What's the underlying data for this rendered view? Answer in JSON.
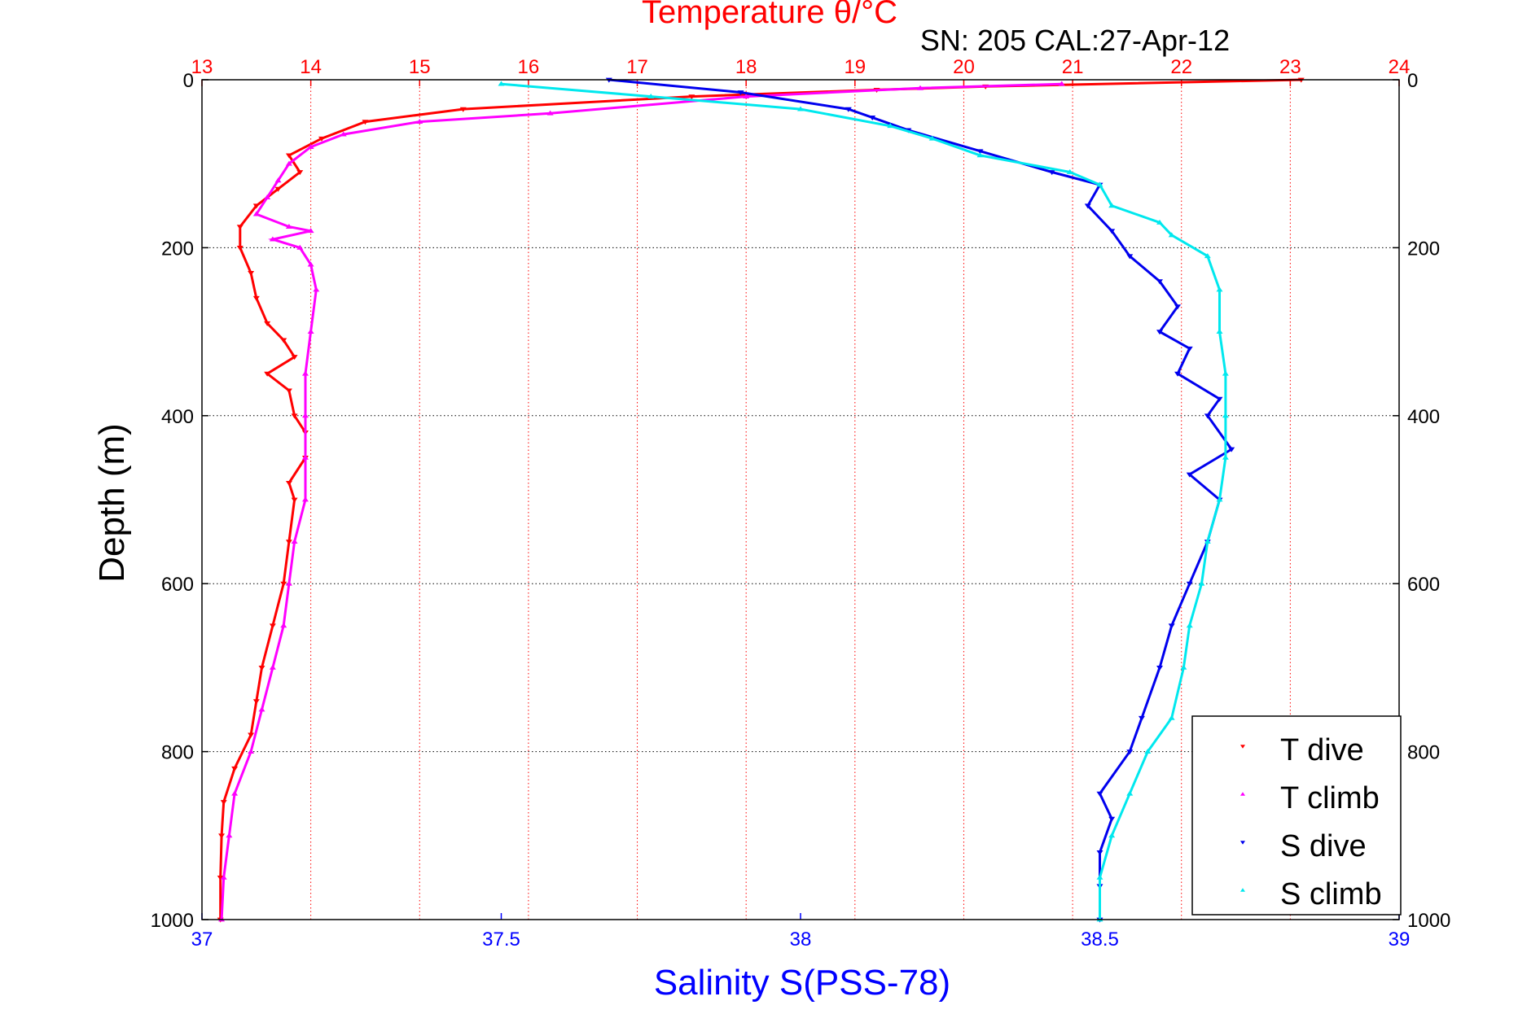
{
  "chart_data": {
    "type": "scatter",
    "title": "Temperature θ/°C",
    "subtitle": "SN: 205  CAL:27-Apr-12",
    "ylabel": "Depth (m)",
    "xlabel_bottom": "Salinity S(PSS-78)",
    "xlabel_top": "Temperature θ/°C",
    "ylim": [
      0,
      1000
    ],
    "y_reversed": true,
    "salinity_lim": [
      37,
      39
    ],
    "temperature_lim": [
      13,
      24
    ],
    "y_ticks": [
      "0",
      "200",
      "400",
      "600",
      "800",
      "1000"
    ],
    "salinity_ticks": [
      "37",
      "37.5",
      "38",
      "38.5",
      "39"
    ],
    "temperature_ticks": [
      "13",
      "14",
      "15",
      "16",
      "17",
      "18",
      "19",
      "20",
      "21",
      "22",
      "23",
      "24"
    ],
    "grid": true,
    "legend_position": "bottom-right",
    "colors": {
      "temperature_axis": "#ff0000",
      "salinity_axis": "#0000ff",
      "t_dive": "#ff0000",
      "t_climb": "#ff00ff",
      "s_dive": "#0000ee",
      "s_climb": "#00e8ee"
    },
    "series": [
      {
        "name": "T dive",
        "axis": "temperature",
        "marker": "triangle-down",
        "color": "#ff0000",
        "points": [
          [
            23.1,
            0
          ],
          [
            20.2,
            8
          ],
          [
            19.2,
            12
          ],
          [
            17.5,
            20
          ],
          [
            15.4,
            35
          ],
          [
            14.5,
            50
          ],
          [
            14.1,
            70
          ],
          [
            13.8,
            90
          ],
          [
            13.9,
            110
          ],
          [
            13.7,
            130
          ],
          [
            13.5,
            150
          ],
          [
            13.35,
            175
          ],
          [
            13.35,
            200
          ],
          [
            13.45,
            230
          ],
          [
            13.5,
            260
          ],
          [
            13.6,
            290
          ],
          [
            13.75,
            310
          ],
          [
            13.85,
            330
          ],
          [
            13.6,
            350
          ],
          [
            13.8,
            370
          ],
          [
            13.85,
            400
          ],
          [
            13.95,
            420
          ],
          [
            13.95,
            450
          ],
          [
            13.8,
            480
          ],
          [
            13.85,
            500
          ],
          [
            13.8,
            550
          ],
          [
            13.75,
            600
          ],
          [
            13.65,
            650
          ],
          [
            13.55,
            700
          ],
          [
            13.5,
            740
          ],
          [
            13.45,
            780
          ],
          [
            13.3,
            820
          ],
          [
            13.2,
            860
          ],
          [
            13.18,
            900
          ],
          [
            13.17,
            950
          ],
          [
            13.17,
            1000
          ]
        ]
      },
      {
        "name": "T climb",
        "axis": "temperature",
        "marker": "triangle-up",
        "color": "#ff00ff",
        "points": [
          [
            20.9,
            5
          ],
          [
            19.6,
            10
          ],
          [
            18.0,
            20
          ],
          [
            16.2,
            40
          ],
          [
            15.0,
            50
          ],
          [
            14.3,
            65
          ],
          [
            14.0,
            80
          ],
          [
            13.8,
            100
          ],
          [
            13.7,
            120
          ],
          [
            13.6,
            140
          ],
          [
            13.5,
            160
          ],
          [
            13.8,
            175
          ],
          [
            14.0,
            180
          ],
          [
            13.65,
            190
          ],
          [
            13.9,
            200
          ],
          [
            14.0,
            220
          ],
          [
            14.05,
            250
          ],
          [
            14.0,
            300
          ],
          [
            13.95,
            350
          ],
          [
            13.95,
            400
          ],
          [
            13.95,
            450
          ],
          [
            13.95,
            500
          ],
          [
            13.85,
            550
          ],
          [
            13.8,
            600
          ],
          [
            13.75,
            650
          ],
          [
            13.65,
            700
          ],
          [
            13.55,
            750
          ],
          [
            13.45,
            800
          ],
          [
            13.3,
            850
          ],
          [
            13.25,
            900
          ],
          [
            13.2,
            950
          ],
          [
            13.18,
            1000
          ]
        ]
      },
      {
        "name": "S dive",
        "axis": "salinity",
        "marker": "triangle-down",
        "color": "#0000ee",
        "points": [
          [
            37.68,
            0
          ],
          [
            37.9,
            15
          ],
          [
            38.08,
            35
          ],
          [
            38.12,
            45
          ],
          [
            38.18,
            60
          ],
          [
            38.3,
            85
          ],
          [
            38.42,
            110
          ],
          [
            38.5,
            125
          ],
          [
            38.48,
            150
          ],
          [
            38.52,
            180
          ],
          [
            38.55,
            210
          ],
          [
            38.6,
            240
          ],
          [
            38.63,
            270
          ],
          [
            38.6,
            300
          ],
          [
            38.65,
            320
          ],
          [
            38.63,
            350
          ],
          [
            38.7,
            380
          ],
          [
            38.68,
            400
          ],
          [
            38.72,
            440
          ],
          [
            38.65,
            470
          ],
          [
            38.7,
            500
          ],
          [
            38.68,
            550
          ],
          [
            38.65,
            600
          ],
          [
            38.62,
            650
          ],
          [
            38.6,
            700
          ],
          [
            38.57,
            760
          ],
          [
            38.55,
            800
          ],
          [
            38.5,
            850
          ],
          [
            38.52,
            880
          ],
          [
            38.5,
            920
          ],
          [
            38.5,
            960
          ],
          [
            38.5,
            1000
          ]
        ]
      },
      {
        "name": "S climb",
        "axis": "salinity",
        "marker": "triangle-up",
        "color": "#00e8ee",
        "points": [
          [
            37.5,
            5
          ],
          [
            37.75,
            20
          ],
          [
            38.0,
            35
          ],
          [
            38.15,
            55
          ],
          [
            38.22,
            70
          ],
          [
            38.3,
            90
          ],
          [
            38.45,
            110
          ],
          [
            38.5,
            125
          ],
          [
            38.52,
            150
          ],
          [
            38.6,
            170
          ],
          [
            38.62,
            185
          ],
          [
            38.68,
            210
          ],
          [
            38.7,
            250
          ],
          [
            38.7,
            300
          ],
          [
            38.71,
            350
          ],
          [
            38.71,
            400
          ],
          [
            38.71,
            450
          ],
          [
            38.7,
            500
          ],
          [
            38.68,
            550
          ],
          [
            38.67,
            600
          ],
          [
            38.65,
            650
          ],
          [
            38.64,
            700
          ],
          [
            38.62,
            760
          ],
          [
            38.58,
            800
          ],
          [
            38.55,
            850
          ],
          [
            38.52,
            900
          ],
          [
            38.5,
            950
          ],
          [
            38.5,
            1000
          ]
        ]
      }
    ]
  }
}
